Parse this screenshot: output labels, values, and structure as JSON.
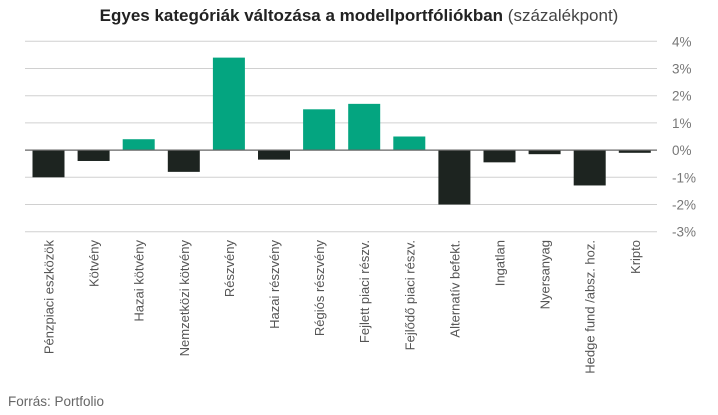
{
  "chart_data": {
    "type": "bar",
    "title": "Egyes kategóriák változása a modellportfóliókban",
    "subtitle": "(százalékpont)",
    "categories": [
      "Pénzpiaci eszközök",
      "Kötvény",
      "Hazai kötvény",
      "Nemzetközi kötvény",
      "Részvény",
      "Hazai részvény",
      "Régiós részvény",
      "Fejlett piaci részv.",
      "Fejlődő piaci részv.",
      "Alternatív befekt.",
      "Ingatlan",
      "Nyersanyag",
      "Hedge fund /absz. hoz.",
      "Kripto"
    ],
    "values": [
      -1.0,
      -0.4,
      0.4,
      -0.8,
      3.4,
      -0.35,
      1.5,
      1.7,
      0.5,
      -2.0,
      -0.45,
      -0.15,
      -1.3,
      -0.1
    ],
    "ylim": [
      -3,
      4
    ],
    "yticks": [
      4,
      3,
      2,
      1,
      0,
      -1,
      -2,
      -3
    ],
    "ytick_labels": [
      "4%",
      "3%",
      "2%",
      "1%",
      "0%",
      "-1%",
      "-2%",
      "-3%"
    ],
    "y_axis_side": "right",
    "grid": true,
    "xlabel": "",
    "ylabel": "",
    "colors": {
      "positive": "#04a580",
      "negative": "#1d2420",
      "grid": "#d0d0d0",
      "zero": "#666666"
    }
  },
  "source": "Forrás: Portfolio"
}
